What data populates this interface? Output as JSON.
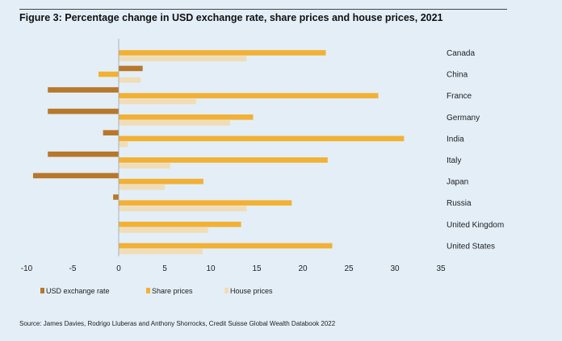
{
  "figure": {
    "title": "Figure 3: Percentage change in USD exchange rate, share prices and house prices, 2021",
    "source": "Source: James Davies, Rodrigo Lluberas and Anthony Shorrocks, Credit Suisse Global Wealth Databook 2022"
  },
  "chart_data": {
    "type": "bar",
    "orientation": "horizontal",
    "title": "",
    "xlabel": "",
    "ylabel": "",
    "xlim": [
      -10,
      35
    ],
    "x_ticks": [
      -10,
      -5,
      0,
      5,
      10,
      15,
      20,
      25,
      30,
      35
    ],
    "grid": false,
    "legend_position": "bottom",
    "categories": [
      "Canada",
      "China",
      "France",
      "Germany",
      "India",
      "Italy",
      "Japan",
      "Russia",
      "United Kingdom",
      "United States"
    ],
    "series": [
      {
        "name": "USD exchange rate",
        "color": "#b8772a",
        "values": [
          0,
          2.6,
          -7.7,
          -7.7,
          -1.7,
          -7.7,
          -9.3,
          -0.6,
          0,
          0
        ]
      },
      {
        "name": "Share prices",
        "color": "#f2b134",
        "values": [
          22.5,
          -2.2,
          28.2,
          14.6,
          31.0,
          22.7,
          9.2,
          18.8,
          13.3,
          23.2
        ]
      },
      {
        "name": "House prices",
        "color": "#f0ddb8",
        "values": [
          13.9,
          2.4,
          8.4,
          12.1,
          1.0,
          5.6,
          5.0,
          13.9,
          9.7,
          9.1
        ]
      }
    ]
  }
}
